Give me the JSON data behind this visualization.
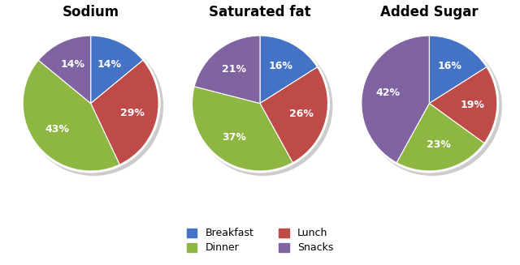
{
  "charts": [
    {
      "title": "Sodium",
      "values": [
        14,
        29,
        43,
        14
      ],
      "labels": [
        "Breakfast",
        "Lunch",
        "Dinner",
        "Snacks"
      ]
    },
    {
      "title": "Saturated fat",
      "values": [
        16,
        26,
        37,
        21
      ],
      "labels": [
        "Breakfast",
        "Lunch",
        "Dinner",
        "Snacks"
      ]
    },
    {
      "title": "Added Sugar",
      "values": [
        16,
        19,
        23,
        42
      ],
      "labels": [
        "Breakfast",
        "Lunch",
        "Dinner",
        "Snacks"
      ]
    }
  ],
  "colors": [
    "#4472C4",
    "#BE4B48",
    "#8DB642",
    "#8064A2"
  ],
  "legend_labels": [
    "Breakfast",
    "Lunch",
    "Dinner",
    "Snacks"
  ],
  "text_color": "#FFFFFF",
  "background_color": "#FFFFFF",
  "title_fontsize": 12,
  "label_fontsize": 9,
  "shadow_color": "#CCCCCC"
}
